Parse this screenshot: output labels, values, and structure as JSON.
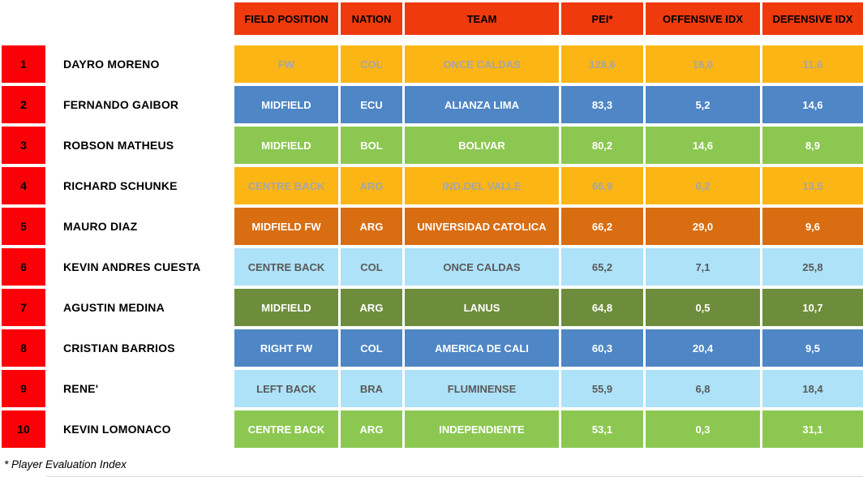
{
  "header": {
    "columns": [
      "FIELD POSITION",
      "NATION",
      "TEAM",
      "PEI*",
      "OFFENSIVE IDX",
      "DEFENSIVE IDX"
    ]
  },
  "rows": [
    {
      "rank": "1",
      "name": "DAYRO MORENO",
      "position": "FW",
      "nation": "COL",
      "team": "ONCE CALDAS",
      "pei": "128,6",
      "offensive_idx": "16,0",
      "defensive_idx": "11,6",
      "style": "amber"
    },
    {
      "rank": "2",
      "name": "FERNANDO GAIBOR",
      "position": "MIDFIELD",
      "nation": "ECU",
      "team": "ALIANZA LIMA",
      "pei": "83,3",
      "offensive_idx": "5,2",
      "defensive_idx": "14,6",
      "style": "blue"
    },
    {
      "rank": "3",
      "name": "ROBSON MATHEUS",
      "position": "MIDFIELD",
      "nation": "BOL",
      "team": "BOLIVAR",
      "pei": "80,2",
      "offensive_idx": "14,6",
      "defensive_idx": "8,9",
      "style": "green"
    },
    {
      "rank": "4",
      "name": "RICHARD SCHUNKE",
      "position": "CENTRE BACK",
      "nation": "ARG",
      "team": "IND.DEL VALLE",
      "pei": "66,9",
      "offensive_idx": "6,2",
      "defensive_idx": "13,5",
      "style": "amber"
    },
    {
      "rank": "5",
      "name": "MAURO DIAZ",
      "position": "MIDFIELD FW",
      "nation": "ARG",
      "team": "UNIVERSIDAD CATOLICA",
      "pei": "66,2",
      "offensive_idx": "29,0",
      "defensive_idx": "9,6",
      "style": "orange"
    },
    {
      "rank": "6",
      "name": "KEVIN ANDRES CUESTA",
      "position": "CENTRE BACK",
      "nation": "COL",
      "team": "ONCE CALDAS",
      "pei": "65,2",
      "offensive_idx": "7,1",
      "defensive_idx": "25,8",
      "style": "lightblue"
    },
    {
      "rank": "7",
      "name": "AGUSTIN MEDINA",
      "position": "MIDFIELD",
      "nation": "ARG",
      "team": "LANUS",
      "pei": "64,8",
      "offensive_idx": "0,5",
      "defensive_idx": "10,7",
      "style": "olive"
    },
    {
      "rank": "8",
      "name": "CRISTIAN BARRIOS",
      "position": "RIGHT FW",
      "nation": "COL",
      "team": "AMERICA DE CALI",
      "pei": "60,3",
      "offensive_idx": "20,4",
      "defensive_idx": "9,5",
      "style": "blue"
    },
    {
      "rank": "9",
      "name": "RENE'",
      "position": "LEFT BACK",
      "nation": "BRA",
      "team": "FLUMINENSE",
      "pei": "55,9",
      "offensive_idx": "6,8",
      "defensive_idx": "18,4",
      "style": "lightblue"
    },
    {
      "rank": "10",
      "name": "KEVIN LOMONACO",
      "position": "CENTRE BACK",
      "nation": "ARG",
      "team": "INDEPENDIENTE",
      "pei": "53,1",
      "offensive_idx": "0,3",
      "defensive_idx": "31,1",
      "style": "green"
    }
  ],
  "footnote": "* Player Evaluation Index",
  "colors": {
    "header_bg": "#EE3A0D",
    "header_fg": "#000000",
    "rank_bg": "#FB0107",
    "rank_fg": "#000000",
    "palette": {
      "amber": {
        "bg": "#FBB515",
        "fg": "#A6A6A6"
      },
      "blue": {
        "bg": "#4E86C6",
        "fg": "#FFFFFF"
      },
      "green": {
        "bg": "#8CC851",
        "fg": "#FFFFFF"
      },
      "orange": {
        "bg": "#D96D12",
        "fg": "#FFFFFF"
      },
      "lightblue": {
        "bg": "#AEE2F8",
        "fg": "#595959"
      },
      "olive": {
        "bg": "#6E8D3C",
        "fg": "#FFFFFF"
      }
    }
  }
}
